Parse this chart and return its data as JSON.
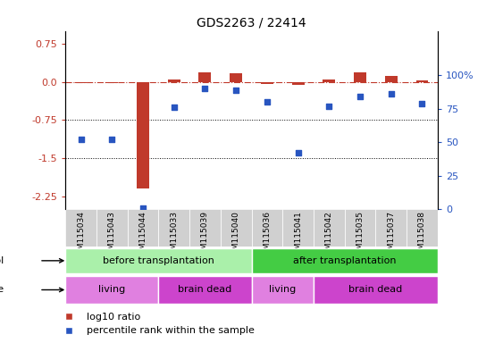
{
  "title": "GDS2263 / 22414",
  "samples": [
    "GSM115034",
    "GSM115043",
    "GSM115044",
    "GSM115033",
    "GSM115039",
    "GSM115040",
    "GSM115036",
    "GSM115041",
    "GSM115042",
    "GSM115035",
    "GSM115037",
    "GSM115038"
  ],
  "log10_ratio": [
    -0.02,
    -0.03,
    -2.1,
    0.05,
    0.18,
    0.16,
    -0.05,
    -0.06,
    0.05,
    0.18,
    0.12,
    0.03
  ],
  "percentile_rank": [
    52,
    52,
    1,
    76,
    90,
    89,
    80,
    42,
    77,
    84,
    86,
    79
  ],
  "bar_color": "#c0392b",
  "dot_color": "#2855c0",
  "zero_line_color": "#c0392b",
  "ylim_left": [
    -2.5,
    1.0
  ],
  "yticks_left": [
    0.75,
    0.0,
    -0.75,
    -1.5,
    -2.25
  ],
  "ylim_right": [
    0,
    133.33
  ],
  "yticks_right": [
    100,
    75,
    50,
    25,
    0
  ],
  "protocol_groups": [
    {
      "label": "before transplantation",
      "start": 0,
      "end": 6,
      "color": "#aaf0aa"
    },
    {
      "label": "after transplantation",
      "start": 6,
      "end": 12,
      "color": "#44cc44"
    }
  ],
  "disease_groups": [
    {
      "label": "living",
      "start": 0,
      "end": 3,
      "color": "#e080e0"
    },
    {
      "label": "brain dead",
      "start": 3,
      "end": 6,
      "color": "#cc44cc"
    },
    {
      "label": "living",
      "start": 6,
      "end": 8,
      "color": "#e080e0"
    },
    {
      "label": "brain dead",
      "start": 8,
      "end": 12,
      "color": "#cc44cc"
    }
  ],
  "legend_labels": [
    "log10 ratio",
    "percentile rank within the sample"
  ],
  "legend_colors": [
    "#c0392b",
    "#2855c0"
  ]
}
